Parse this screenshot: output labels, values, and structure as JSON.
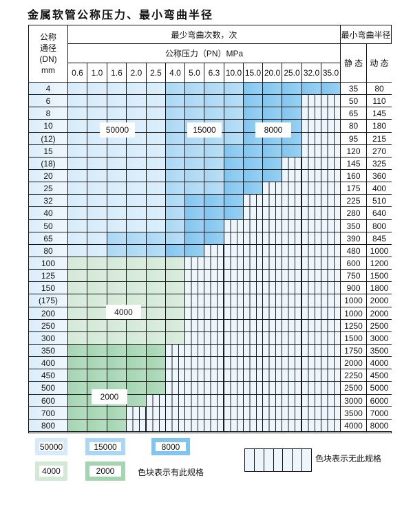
{
  "title": "金属软管公称压力、最小弯曲半径",
  "header": {
    "dn_label": [
      "公称",
      "通径",
      "(DN)",
      "mm"
    ],
    "bend_count": "最少弯曲次数，次",
    "pressure_label": "公称压力（PN）MPa",
    "pressures": [
      "0.6",
      "1.0",
      "1.6",
      "2.0",
      "2.5",
      "4.0",
      "5.0",
      "6.3",
      "10.0",
      "15.0",
      "20.0",
      "25.0",
      "32.0",
      "35.0"
    ],
    "radius_title": "最小弯曲半径",
    "static": "静 态",
    "dynamic": "动 态"
  },
  "colors": {
    "a": "#d6ebfa",
    "b": "#a9d7f4",
    "c": "#80c5ef",
    "g": "#d3e9d6",
    "G": "#a3d5b1"
  },
  "rows": [
    {
      "dn": "4",
      "static": "35",
      "dynamic": "80",
      "spec": "aaaaabbbbccccc"
    },
    {
      "dn": "6",
      "static": "50",
      "dynamic": "110",
      "spec": "aaaaabbbbccc--"
    },
    {
      "dn": "8",
      "static": "65",
      "dynamic": "145",
      "spec": "aaaaabbbbccc--"
    },
    {
      "dn": "10",
      "static": "80",
      "dynamic": "180",
      "spec": "aaaaabbbbccc--"
    },
    {
      "dn": "(12)",
      "static": "95",
      "dynamic": "215",
      "spec": "aaaaabbbbccc--"
    },
    {
      "dn": "15",
      "static": "120",
      "dynamic": "270",
      "spec": "aaaaabbbcccc--"
    },
    {
      "dn": "(18)",
      "static": "145",
      "dynamic": "325",
      "spec": "aaaaabbbccc---"
    },
    {
      "dn": "20",
      "static": "160",
      "dynamic": "360",
      "spec": "aaaaabbbccc---"
    },
    {
      "dn": "25",
      "static": "175",
      "dynamic": "400",
      "spec": "aaaaabbbcc----"
    },
    {
      "dn": "32",
      "static": "225",
      "dynamic": "510",
      "spec": "aaaaabccc-----"
    },
    {
      "dn": "40",
      "static": "280",
      "dynamic": "640",
      "spec": "aaaaabccc-----"
    },
    {
      "dn": "50",
      "static": "350",
      "dynamic": "800",
      "spec": "aaaaabcc------"
    },
    {
      "dn": "65",
      "static": "390",
      "dynamic": "845",
      "spec": "aabbbbcc------"
    },
    {
      "dn": "80",
      "static": "480",
      "dynamic": "1000",
      "spec": "aabbbcc-------"
    },
    {
      "dn": "100",
      "static": "600",
      "dynamic": "1200",
      "spec": "gggggg--------"
    },
    {
      "dn": "125",
      "static": "750",
      "dynamic": "1500",
      "spec": "gggggg--------"
    },
    {
      "dn": "150",
      "static": "900",
      "dynamic": "1800",
      "spec": "gggggg--------"
    },
    {
      "dn": "(175)",
      "static": "1000",
      "dynamic": "2000",
      "spec": "gggggg--------"
    },
    {
      "dn": "200",
      "static": "1000",
      "dynamic": "2000",
      "spec": "gggggg--------"
    },
    {
      "dn": "250",
      "static": "1250",
      "dynamic": "2500",
      "spec": "gggggg--------"
    },
    {
      "dn": "300",
      "static": "1500",
      "dynamic": "3000",
      "spec": "gggggg--------"
    },
    {
      "dn": "350",
      "static": "1750",
      "dynamic": "3500",
      "spec": "GGGGG---------"
    },
    {
      "dn": "400",
      "static": "2000",
      "dynamic": "4000",
      "spec": "GGGGG---------"
    },
    {
      "dn": "450",
      "static": "2250",
      "dynamic": "4500",
      "spec": "GGGGG---------"
    },
    {
      "dn": "500",
      "static": "2500",
      "dynamic": "5000",
      "spec": "GGGGG---------"
    },
    {
      "dn": "600",
      "static": "3000",
      "dynamic": "6000",
      "spec": "GGGG----------"
    },
    {
      "dn": "700",
      "static": "3500",
      "dynamic": "7000",
      "spec": "GGG-----------"
    },
    {
      "dn": "800",
      "static": "4000",
      "dynamic": "8000",
      "spec": "GGG-----------"
    }
  ],
  "region_labels": [
    "50000",
    "15000",
    "8000",
    "4000",
    "2000"
  ],
  "legend": {
    "items": [
      "50000",
      "15000",
      "8000",
      "4000",
      "2000"
    ],
    "available_text": "色块表示有此规格",
    "unavailable_text": "色块表示无此规格"
  }
}
